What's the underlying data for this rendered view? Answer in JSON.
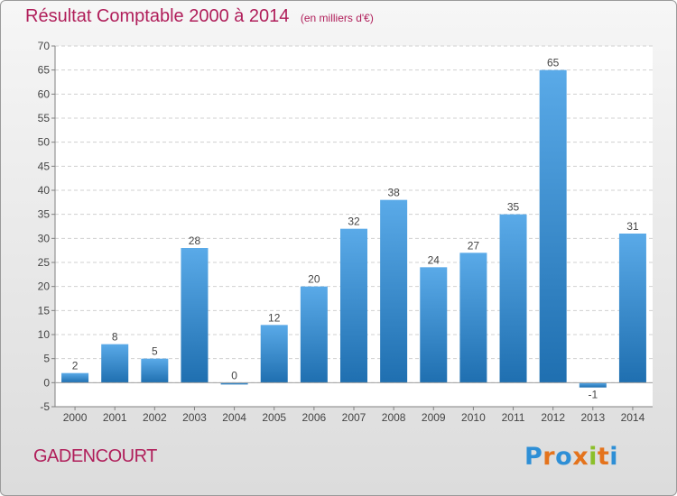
{
  "header": {
    "title": "Résultat Comptable 2000 à 2014",
    "subtitle": "(en milliers d'€)"
  },
  "footer": {
    "commune": "GADENCOURT",
    "logo_text": "Proxiti"
  },
  "colors": {
    "title": "#b01e5a",
    "bar_light": "#5aaae8",
    "bar_dark": "#1f6fb0",
    "logo_letters": [
      "#2e8fd6",
      "#e4731c",
      "#2e8fd6",
      "#e4731c",
      "#8cbf2a",
      "#e4731c",
      "#2e8fd6"
    ]
  },
  "chart_data": {
    "type": "bar",
    "categories": [
      "2000",
      "2001",
      "2002",
      "2003",
      "2004",
      "2005",
      "2006",
      "2007",
      "2008",
      "2009",
      "2010",
      "2011",
      "2012",
      "2013",
      "2014"
    ],
    "values": [
      2,
      8,
      5,
      28,
      0,
      12,
      20,
      32,
      38,
      24,
      27,
      35,
      65,
      -1,
      31
    ],
    "data_labels": [
      "2",
      "8",
      "5",
      "28",
      "0",
      "12",
      "20",
      "32",
      "38",
      "24",
      "27",
      "35",
      "65",
      "-1",
      "31"
    ],
    "yticks": [
      -5,
      0,
      5,
      10,
      15,
      20,
      25,
      30,
      35,
      40,
      45,
      50,
      55,
      60,
      65,
      70
    ],
    "ylim": [
      -5,
      70
    ],
    "grid": true,
    "xlabel": "",
    "ylabel": ""
  }
}
